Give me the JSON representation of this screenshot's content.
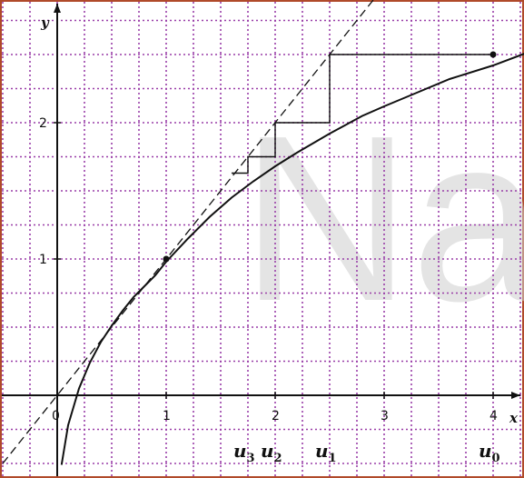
{
  "chart_data": {
    "type": "line",
    "title": "",
    "xlabel": "x",
    "ylabel": "y",
    "xlim": [
      -0.5,
      4.3
    ],
    "ylim": [
      -0.6,
      2.9
    ],
    "grid": true,
    "x_ticks": [
      "0",
      "1",
      "2",
      "3",
      "4"
    ],
    "y_ticks": [
      "1",
      "2"
    ],
    "series": [
      {
        "kind": "curve",
        "style": "solid",
        "x": [
          0.04,
          0.1,
          0.2,
          0.3,
          0.4,
          0.5,
          0.6,
          0.7,
          0.8,
          0.9,
          1.0,
          1.2,
          1.4,
          1.6,
          1.8,
          2.0,
          2.2,
          2.5,
          2.8,
          3.0,
          3.3,
          3.6,
          4.0,
          4.3
        ],
        "y": [
          -0.51,
          -0.22,
          0.05,
          0.24,
          0.39,
          0.51,
          0.62,
          0.72,
          0.8,
          0.88,
          0.98,
          1.15,
          1.31,
          1.45,
          1.57,
          1.68,
          1.78,
          1.92,
          2.05,
          2.12,
          2.22,
          2.32,
          2.42,
          2.51
        ]
      },
      {
        "kind": "line",
        "style": "dashed",
        "x": [
          -0.5,
          2.9
        ],
        "y": [
          -0.5,
          2.9
        ]
      },
      {
        "kind": "cobweb",
        "style": "solid",
        "x": [
          4.0,
          2.5,
          2.5,
          2.0,
          2.0,
          1.75,
          1.75,
          1.6
        ],
        "y": [
          2.5,
          2.5,
          2.0,
          2.0,
          1.75,
          1.75,
          1.63,
          1.63
        ]
      }
    ],
    "points": [
      {
        "x": 1.0,
        "y": 1.0
      },
      {
        "x": 4.0,
        "y": 2.5
      }
    ],
    "annotations": [
      {
        "text": "u",
        "sub": "3",
        "x": 1.75
      },
      {
        "text": "u",
        "sub": "2",
        "x": 2.0
      },
      {
        "text": "u",
        "sub": "1",
        "x": 2.5
      },
      {
        "text": "u",
        "sub": "0",
        "x": 4.0
      }
    ],
    "watermark": "Na"
  },
  "colors": {
    "grid": "#9a3fa8",
    "axis": "#111111",
    "curve": "#111111",
    "border": "#b04a2a",
    "watermark": "#cfcfcf"
  }
}
